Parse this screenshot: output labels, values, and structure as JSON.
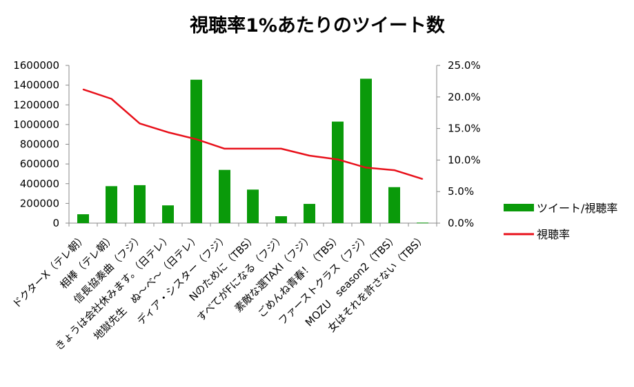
{
  "chart_data": {
    "type": "bar",
    "title": "視聴率1%あたりのツイート数",
    "categories": [
      "ドクターX（テレ朝）",
      "相棒（テレ朝）",
      "信長協奏曲（フジ）",
      "きょうは会社休みます。（日テレ）",
      "地獄先生　ぬ～べ～（日テレ）",
      "ディア・シスター（フジ）",
      "Nのために（TBS）",
      "すべてがFになる（フジ）",
      "素敵な選TAXI（フジ）",
      "ごめんね青春！（TBS）",
      "ファーストクラス（フジ）",
      "MOZU　season2（TBS）",
      "女はそれを許さない（TBS）"
    ],
    "series": [
      {
        "name": "ツイート/視聴率",
        "type": "bar",
        "axis": "left",
        "color": "#0a9a0a",
        "values": [
          90000,
          375000,
          385000,
          180000,
          1455000,
          540000,
          340000,
          70000,
          195000,
          1030000,
          1465000,
          365000,
          5000
        ]
      },
      {
        "name": "視聴率",
        "type": "line",
        "axis": "right",
        "color": "#e8101a",
        "values": [
          0.212,
          0.197,
          0.158,
          0.144,
          0.133,
          0.118,
          0.118,
          0.118,
          0.107,
          0.101,
          0.088,
          0.084,
          0.07
        ]
      }
    ],
    "y_left": {
      "min": 0,
      "max": 1600000,
      "step": 200000,
      "tick_labels": [
        "0",
        "200000",
        "400000",
        "600000",
        "800000",
        "1000000",
        "1200000",
        "1400000",
        "1600000"
      ]
    },
    "y_right": {
      "min": 0,
      "max": 0.25,
      "step": 0.05,
      "tick_labels": [
        "0.0%",
        "5.0%",
        "10.0%",
        "15.0%",
        "20.0%",
        "25.0%"
      ]
    },
    "legend_position": "right",
    "grid": false
  }
}
